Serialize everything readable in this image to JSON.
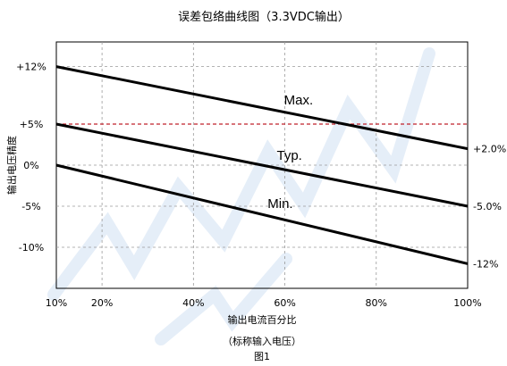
{
  "chart_data": {
    "type": "line",
    "title": "误差包络曲线图（3.3VDC输出）",
    "xlabel": "输出电流百分比",
    "xlabel_note": "（标称输入电压）",
    "ylabel": "输出电压精度",
    "figure_caption": "图1",
    "xlim": [
      10,
      100
    ],
    "ylim": [
      -15,
      15
    ],
    "x_ticks": [
      {
        "value": 10,
        "label": "10%"
      },
      {
        "value": 20,
        "label": "20%"
      },
      {
        "value": 40,
        "label": "40%"
      },
      {
        "value": 60,
        "label": "60%"
      },
      {
        "value": 80,
        "label": "80%"
      },
      {
        "value": 100,
        "label": "100%"
      }
    ],
    "y_ticks": [
      {
        "value": 12,
        "label": "+12%"
      },
      {
        "value": 5,
        "label": "+5%"
      },
      {
        "value": 0,
        "label": "0%"
      },
      {
        "value": -5,
        "label": "-5%"
      },
      {
        "value": -10,
        "label": "-10%"
      }
    ],
    "grid": true,
    "reference_line": {
      "value": 5,
      "color": "#c0202a",
      "style": "dashed"
    },
    "series": [
      {
        "name": "Max.",
        "x": [
          10,
          100
        ],
        "y": [
          12,
          2.0
        ],
        "end_label": "+2.0%"
      },
      {
        "name": "Typ.",
        "x": [
          10,
          100
        ],
        "y": [
          5,
          -5.0
        ],
        "end_label": "-5.0%"
      },
      {
        "name": "Min.",
        "x": [
          10,
          100
        ],
        "y": [
          0,
          -12.0
        ],
        "end_label": "-12%"
      }
    ],
    "colors": {
      "line": "#000000",
      "grid": "#9a9a9a",
      "reference": "#c0202a",
      "watermark": "#cfe0f3"
    }
  }
}
